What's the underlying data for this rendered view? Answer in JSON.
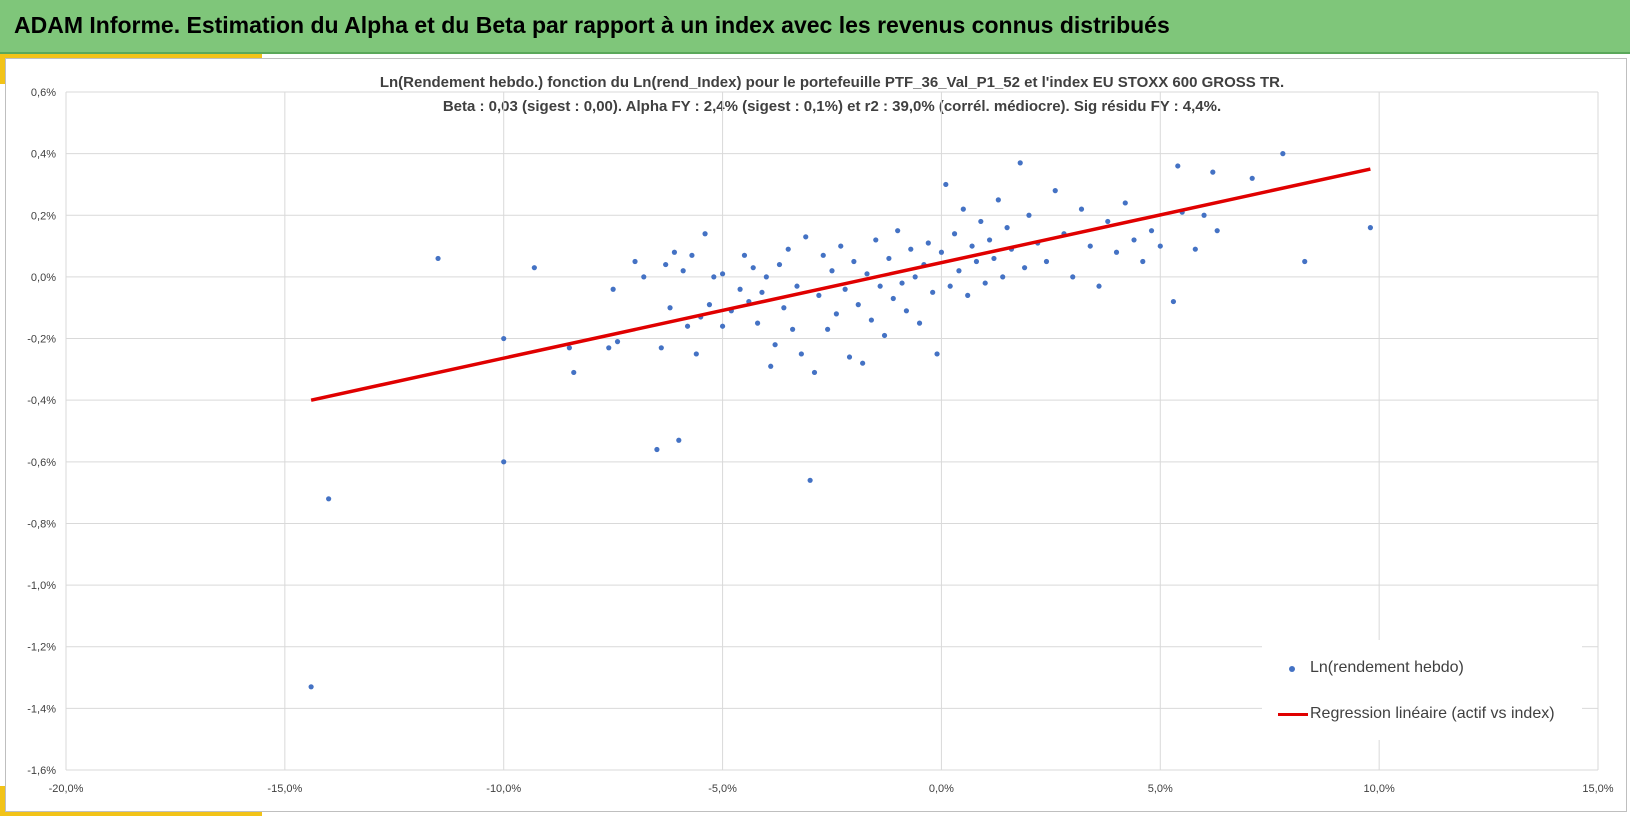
{
  "header": {
    "title": "ADAM Informe. Estimation du Alpha et du Beta par rapport à un index avec les revenus connus distribués"
  },
  "colors": {
    "banner": "#7fc67a",
    "accent": "#f2c318",
    "points": "#4472c4",
    "regression": "#e00000",
    "grid": "#d9d9d9"
  },
  "chart_data": {
    "type": "scatter",
    "title": [
      "Ln(Rendement hebdo.) fonction du Ln(rend_Index) pour le portefeuille PTF_36_Val_P1_52 et l'index EU STOXX 600 GROSS TR.",
      "Beta : 0,03 (sigest : 0,00). Alpha FY : 2,4% (sigest : 0,1%) et r2 : 39,0% (corrél. médiocre). Sig résidu FY : 4,4%."
    ],
    "xlim": [
      -20,
      15
    ],
    "ylim": [
      -1.6,
      0.6
    ],
    "x_ticks": [
      -20,
      -15,
      -10,
      -5,
      0,
      5,
      10,
      15
    ],
    "y_ticks": [
      0.6,
      0.4,
      0.2,
      0.0,
      -0.2,
      -0.4,
      -0.6,
      -0.8,
      -1.0,
      -1.2,
      -1.4,
      -1.6
    ],
    "x_tick_labels": [
      "-20,0%",
      "-15,0%",
      "-10,0%",
      "-5,0%",
      "0,0%",
      "5,0%",
      "10,0%",
      "15,0%"
    ],
    "y_tick_labels": [
      "0,6%",
      "0,4%",
      "0,2%",
      "0,0%",
      "-0,2%",
      "-0,4%",
      "-0,6%",
      "-0,8%",
      "-1,0%",
      "-1,2%",
      "-1,4%",
      "-1,6%"
    ],
    "grid": true,
    "legend_position": "bottom-right",
    "series": [
      {
        "name": "Ln(rendement hebdo)",
        "type": "scatter",
        "points": [
          [
            -14.4,
            -1.33
          ],
          [
            -14.0,
            -0.72
          ],
          [
            -11.5,
            0.06
          ],
          [
            -10.0,
            -0.2
          ],
          [
            -10.0,
            -0.6
          ],
          [
            -9.3,
            0.03
          ],
          [
            -8.5,
            -0.23
          ],
          [
            -8.4,
            -0.31
          ],
          [
            -7.6,
            -0.23
          ],
          [
            -7.5,
            -0.04
          ],
          [
            -7.4,
            -0.21
          ],
          [
            -7.0,
            0.05
          ],
          [
            -6.8,
            0.0
          ],
          [
            -6.5,
            -0.56
          ],
          [
            -6.4,
            -0.23
          ],
          [
            -6.3,
            0.04
          ],
          [
            -6.2,
            -0.1
          ],
          [
            -6.1,
            0.08
          ],
          [
            -6.0,
            -0.53
          ],
          [
            -5.9,
            0.02
          ],
          [
            -5.8,
            -0.16
          ],
          [
            -5.7,
            0.07
          ],
          [
            -5.6,
            -0.25
          ],
          [
            -5.5,
            -0.13
          ],
          [
            -5.4,
            0.14
          ],
          [
            -5.3,
            -0.09
          ],
          [
            -5.2,
            0.0
          ],
          [
            -5.0,
            -0.16
          ],
          [
            -5.0,
            0.01
          ],
          [
            -4.8,
            -0.11
          ],
          [
            -4.6,
            -0.04
          ],
          [
            -4.5,
            0.07
          ],
          [
            -4.4,
            -0.08
          ],
          [
            -4.3,
            0.03
          ],
          [
            -4.2,
            -0.15
          ],
          [
            -4.1,
            -0.05
          ],
          [
            -4.0,
            0.0
          ],
          [
            -3.9,
            -0.29
          ],
          [
            -3.8,
            -0.22
          ],
          [
            -3.7,
            0.04
          ],
          [
            -3.6,
            -0.1
          ],
          [
            -3.5,
            0.09
          ],
          [
            -3.4,
            -0.17
          ],
          [
            -3.3,
            -0.03
          ],
          [
            -3.2,
            -0.25
          ],
          [
            -3.1,
            0.13
          ],
          [
            -3.0,
            -0.66
          ],
          [
            -2.9,
            -0.31
          ],
          [
            -2.8,
            -0.06
          ],
          [
            -2.7,
            0.07
          ],
          [
            -2.6,
            -0.17
          ],
          [
            -2.5,
            0.02
          ],
          [
            -2.4,
            -0.12
          ],
          [
            -2.3,
            0.1
          ],
          [
            -2.2,
            -0.04
          ],
          [
            -2.1,
            -0.26
          ],
          [
            -2.0,
            0.05
          ],
          [
            -1.9,
            -0.09
          ],
          [
            -1.8,
            -0.28
          ],
          [
            -1.7,
            0.01
          ],
          [
            -1.6,
            -0.14
          ],
          [
            -1.5,
            0.12
          ],
          [
            -1.4,
            -0.03
          ],
          [
            -1.3,
            -0.19
          ],
          [
            -1.2,
            0.06
          ],
          [
            -1.1,
            -0.07
          ],
          [
            -1.0,
            0.15
          ],
          [
            -0.9,
            -0.02
          ],
          [
            -0.8,
            -0.11
          ],
          [
            -0.7,
            0.09
          ],
          [
            -0.6,
            0.0
          ],
          [
            -0.5,
            -0.15
          ],
          [
            -0.4,
            0.04
          ],
          [
            -0.3,
            0.11
          ],
          [
            -0.2,
            -0.05
          ],
          [
            -0.1,
            -0.25
          ],
          [
            0.0,
            0.08
          ],
          [
            0.1,
            0.3
          ],
          [
            0.2,
            -0.03
          ],
          [
            0.3,
            0.14
          ],
          [
            0.4,
            0.02
          ],
          [
            0.5,
            0.22
          ],
          [
            0.6,
            -0.06
          ],
          [
            0.7,
            0.1
          ],
          [
            0.8,
            0.05
          ],
          [
            0.9,
            0.18
          ],
          [
            1.0,
            -0.02
          ],
          [
            1.1,
            0.12
          ],
          [
            1.2,
            0.06
          ],
          [
            1.3,
            0.25
          ],
          [
            1.4,
            0.0
          ],
          [
            1.5,
            0.16
          ],
          [
            1.6,
            0.09
          ],
          [
            1.8,
            0.37
          ],
          [
            1.9,
            0.03
          ],
          [
            2.0,
            0.2
          ],
          [
            2.2,
            0.11
          ],
          [
            2.4,
            0.05
          ],
          [
            2.6,
            0.28
          ],
          [
            2.8,
            0.14
          ],
          [
            3.0,
            0.0
          ],
          [
            3.2,
            0.22
          ],
          [
            3.4,
            0.1
          ],
          [
            3.6,
            -0.03
          ],
          [
            3.8,
            0.18
          ],
          [
            4.0,
            0.08
          ],
          [
            4.2,
            0.24
          ],
          [
            4.4,
            0.12
          ],
          [
            4.6,
            0.05
          ],
          [
            4.8,
            0.15
          ],
          [
            5.0,
            0.1
          ],
          [
            5.3,
            -0.08
          ],
          [
            5.4,
            0.36
          ],
          [
            5.5,
            0.21
          ],
          [
            5.8,
            0.09
          ],
          [
            6.0,
            0.2
          ],
          [
            6.2,
            0.34
          ],
          [
            6.3,
            0.15
          ],
          [
            7.1,
            0.32
          ],
          [
            7.8,
            0.4
          ],
          [
            8.3,
            0.05
          ],
          [
            9.8,
            0.16
          ]
        ]
      },
      {
        "name": "Regression linéaire (actif vs index)",
        "type": "line",
        "points": [
          [
            -14.4,
            -0.4
          ],
          [
            9.8,
            0.35
          ]
        ]
      }
    ]
  }
}
